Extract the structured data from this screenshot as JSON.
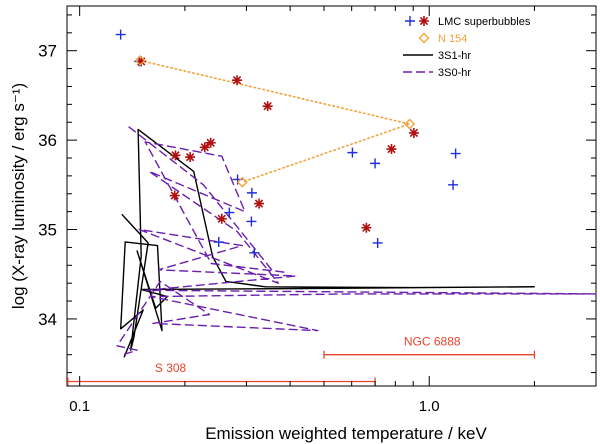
{
  "chart_data": {
    "type": "scatter",
    "title": "",
    "xlabel": "Emission weighted temperature / keV",
    "ylabel": "log (X-ray luminosity / erg s⁻¹)",
    "xscale": "log",
    "xlim": [
      0.092,
      3.0
    ],
    "ylim": [
      33.25,
      37.5
    ],
    "x_ticks": [
      {
        "value": 0.1,
        "label": "0.1"
      },
      {
        "value": 1.0,
        "label": "1.0"
      }
    ],
    "x_minor_ticks": [
      0.2,
      0.3,
      0.4,
      0.5,
      0.6,
      0.7,
      0.8,
      0.9,
      2,
      3
    ],
    "y_ticks": [
      {
        "value": 34,
        "label": "34"
      },
      {
        "value": 35,
        "label": "35"
      },
      {
        "value": 36,
        "label": "36"
      },
      {
        "value": 37,
        "label": "37"
      }
    ],
    "y_minor_step": 0.2,
    "grid": false,
    "legend_position": "top-right",
    "legend": [
      {
        "key": "lmc",
        "label": "LMC superbubbles",
        "color": "#1f2ed9",
        "color2": "#b01010"
      },
      {
        "key": "n154",
        "label": "N 154",
        "color": "#f2a33a"
      },
      {
        "key": "s1",
        "label": "3S1-hr",
        "color": "#000000"
      },
      {
        "key": "s0",
        "label": "3S0-hr",
        "color": "#6a1fae"
      }
    ],
    "lmc_plus": [
      [
        0.131,
        37.18
      ],
      [
        0.148,
        36.88
      ],
      [
        0.268,
        35.19
      ],
      [
        0.31,
        35.09
      ],
      [
        0.25,
        34.86
      ],
      [
        0.316,
        34.74
      ],
      [
        0.283,
        35.56
      ],
      [
        0.311,
        35.41
      ],
      [
        0.603,
        35.86
      ],
      [
        0.7,
        35.74
      ],
      [
        0.712,
        34.85
      ],
      [
        1.19,
        35.85
      ],
      [
        1.17,
        35.5
      ]
    ],
    "lmc_star": [
      [
        0.15,
        36.88
      ],
      [
        0.282,
        36.67
      ],
      [
        0.345,
        36.38
      ],
      [
        0.904,
        36.08
      ],
      [
        0.188,
        35.83
      ],
      [
        0.207,
        35.81
      ],
      [
        0.228,
        35.92
      ],
      [
        0.237,
        35.97
      ],
      [
        0.187,
        35.38
      ],
      [
        0.255,
        35.12
      ],
      [
        0.326,
        35.29
      ],
      [
        0.661,
        35.02
      ],
      [
        0.78,
        35.9
      ]
    ],
    "n154_points": [
      [
        0.149,
        36.89
      ],
      [
        0.879,
        36.18
      ],
      [
        0.292,
        35.53
      ]
    ],
    "n154_line": [
      [
        0.149,
        36.89
      ],
      [
        0.879,
        36.18
      ],
      [
        0.292,
        35.53
      ]
    ],
    "series": [
      {
        "name": "3S1-hr",
        "color": "#000000",
        "dash": "",
        "points": [
          [
            0.132,
            35.17
          ],
          [
            0.157,
            34.85
          ],
          [
            0.143,
            33.8
          ],
          [
            0.14,
            33.65
          ],
          [
            0.15,
            34.7
          ],
          [
            0.147,
            36.12
          ],
          [
            0.212,
            35.65
          ],
          [
            0.24,
            34.7
          ],
          [
            0.262,
            34.42
          ],
          [
            0.34,
            34.36
          ],
          [
            0.9,
            34.35
          ],
          [
            1.998,
            34.36
          ],
          [
            0.44,
            34.34
          ],
          [
            0.15,
            34.33
          ],
          [
            0.178,
            34.25
          ],
          [
            0.165,
            34.12
          ],
          [
            0.146,
            34.76
          ],
          [
            0.172,
            33.87
          ],
          [
            0.167,
            34.82
          ],
          [
            0.135,
            34.86
          ],
          [
            0.131,
            33.89
          ],
          [
            0.152,
            34.1
          ],
          [
            0.134,
            33.57
          ]
        ]
      },
      {
        "name": "3S0-hr",
        "color": "#6a1fae",
        "dash": "9,4",
        "points": [
          [
            0.138,
            36.15
          ],
          [
            0.226,
            35.5
          ],
          [
            0.356,
            34.54
          ],
          [
            0.39,
            34.52
          ],
          [
            0.238,
            34.62
          ],
          [
            0.154,
            35.98
          ],
          [
            0.255,
            35.82
          ],
          [
            0.297,
            35.2
          ],
          [
            0.158,
            35.65
          ],
          [
            0.282,
            34.98
          ],
          [
            0.37,
            34.4
          ],
          [
            0.148,
            35.0
          ],
          [
            0.292,
            34.82
          ],
          [
            0.168,
            34.55
          ],
          [
            0.415,
            34.48
          ],
          [
            0.155,
            34.32
          ],
          [
            3.0,
            34.28
          ],
          [
            0.6,
            34.28
          ],
          [
            0.16,
            34.25
          ],
          [
            0.48,
            33.87
          ],
          [
            0.162,
            33.95
          ],
          [
            0.235,
            34.05
          ],
          [
            0.17,
            34.42
          ],
          [
            0.128,
            33.7
          ],
          [
            0.146,
            33.65
          ],
          [
            0.133,
            33.6
          ]
        ]
      }
    ],
    "ranges": [
      {
        "name": "S 308",
        "x_min": 0.0925,
        "x_max": 0.7,
        "y": 33.3,
        "label_x": 0.182,
        "label_y": 33.45,
        "color": "#e8432a"
      },
      {
        "name": "NGC 6888",
        "x_min": 0.5,
        "x_max": 2.0,
        "y": 33.6,
        "label_x": 1.02,
        "label_y": 33.75,
        "color": "#e8432a"
      }
    ]
  }
}
